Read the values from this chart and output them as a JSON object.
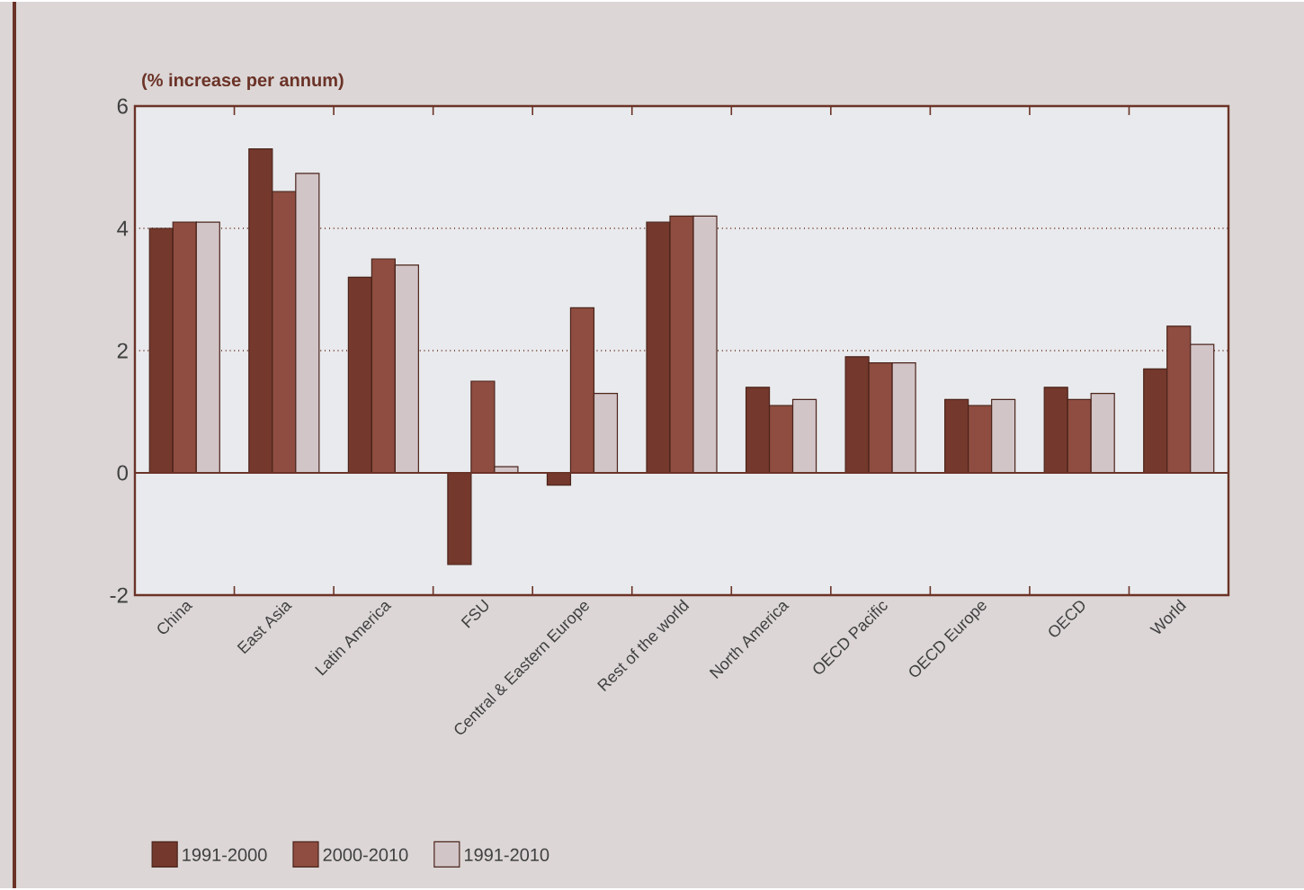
{
  "chart_data": {
    "type": "bar",
    "ylabel": "(% increase per annum)",
    "categories": [
      "China",
      "East Asia",
      "Latin America",
      "FSU",
      "Central & Eastern Europe",
      "Rest of the world",
      "North America",
      "OECD Pacific",
      "OECD Europe",
      "OECD",
      "World"
    ],
    "series": [
      {
        "name": "1991-2000",
        "color": "#74382c",
        "values": [
          4.0,
          5.3,
          3.2,
          -1.5,
          -0.2,
          4.1,
          1.4,
          1.9,
          1.2,
          1.4,
          1.7
        ]
      },
      {
        "name": "2000-2010",
        "color": "#8e4d40",
        "values": [
          4.1,
          4.6,
          3.5,
          1.5,
          2.7,
          4.2,
          1.1,
          1.8,
          1.1,
          1.2,
          2.4
        ]
      },
      {
        "name": "1991-2010",
        "color": "#d2c5c8",
        "values": [
          4.1,
          4.9,
          3.4,
          0.1,
          1.3,
          4.2,
          1.2,
          1.8,
          1.2,
          1.3,
          2.1
        ]
      }
    ],
    "ref_lines": [
      {
        "axis": "y",
        "value": 0,
        "color": "#6b3327"
      }
    ],
    "ylim": [
      -2,
      6
    ],
    "yticks": [
      -2,
      0,
      2,
      4,
      6
    ],
    "grid": "y",
    "legend": "bottom"
  }
}
